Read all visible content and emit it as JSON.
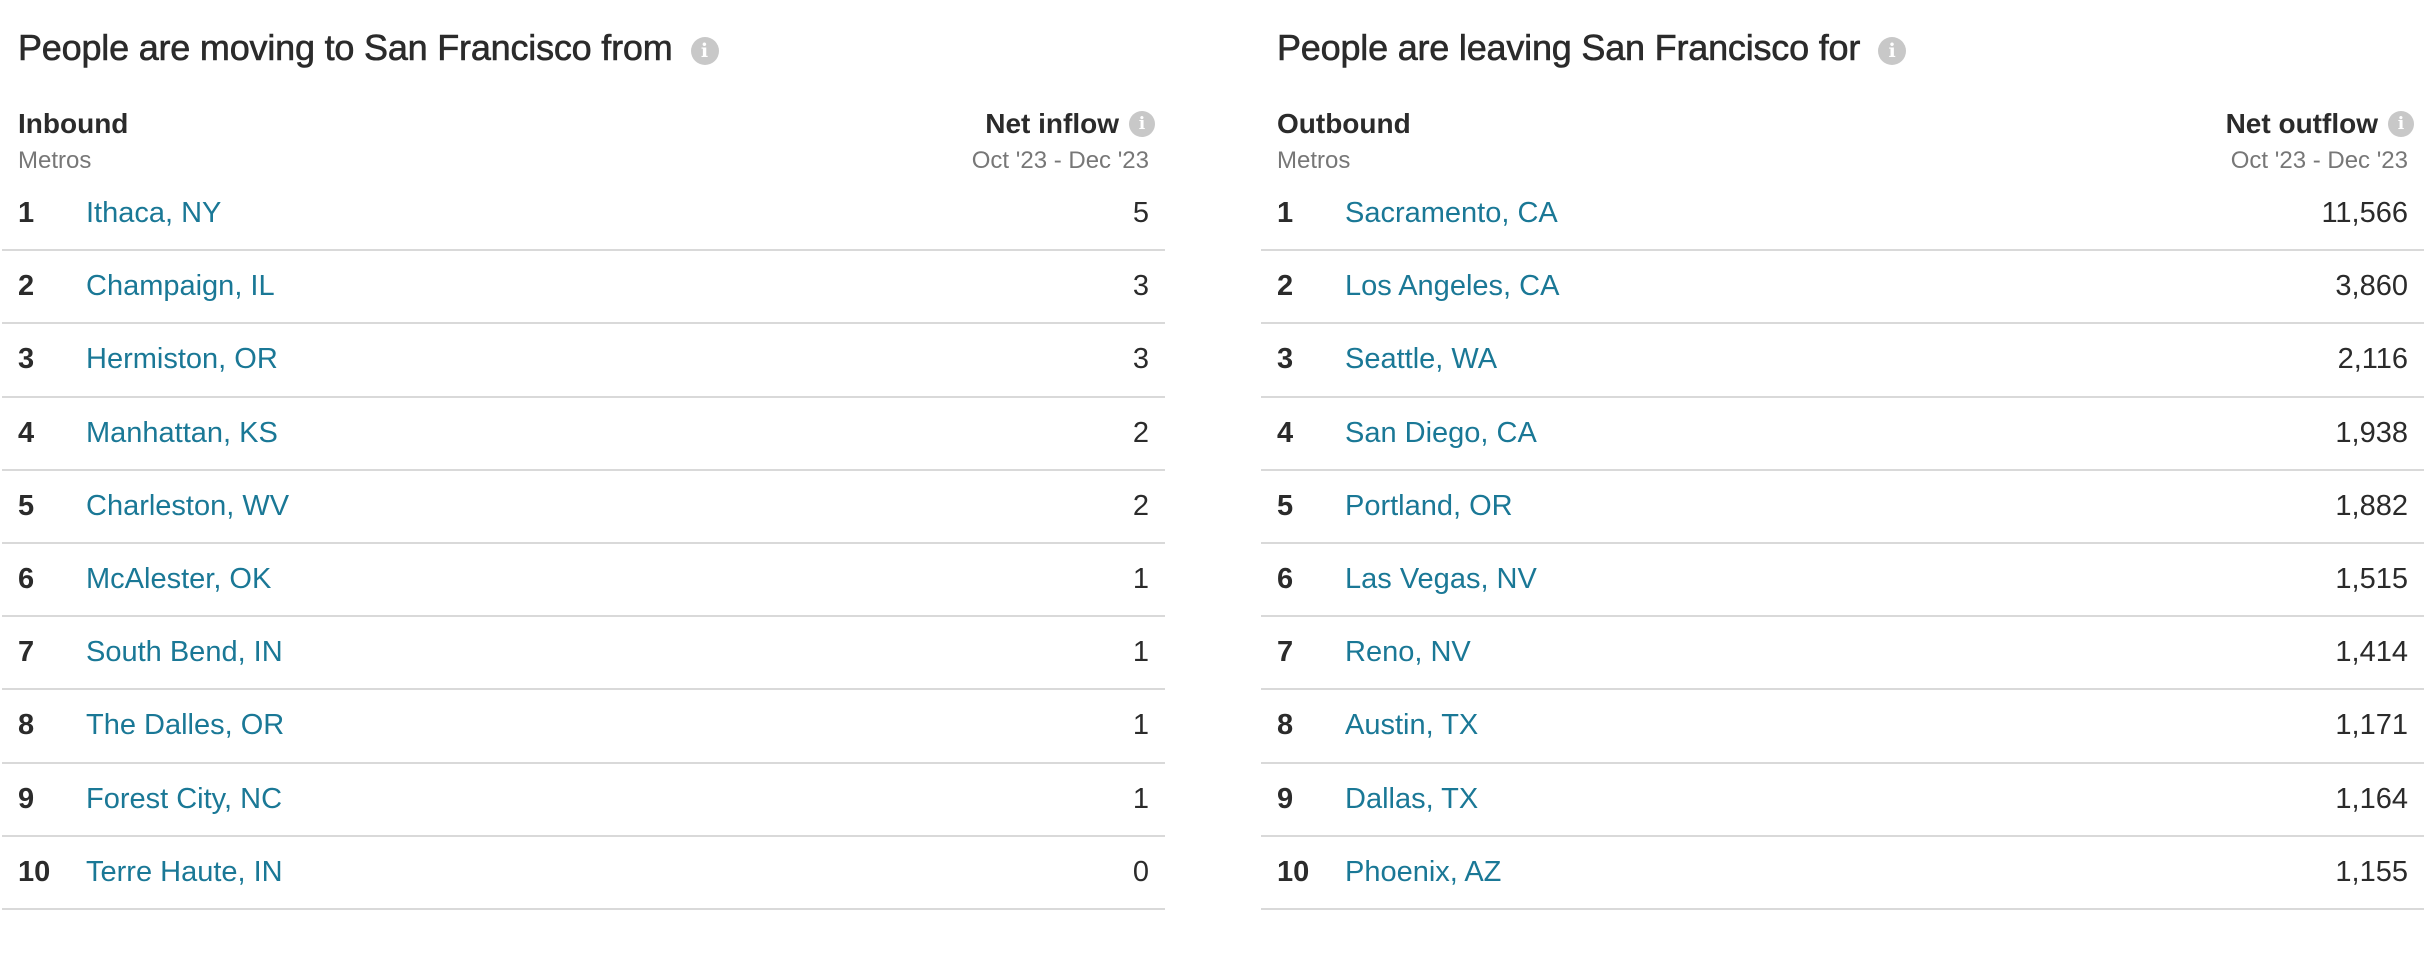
{
  "inbound": {
    "title": "People are moving to San Francisco from",
    "col_label": "Inbound",
    "col_sub": "Metros",
    "value_label": "Net inflow",
    "value_sub": "Oct '23 - Dec '23",
    "rows": [
      {
        "rank": "1",
        "place": "Ithaca, NY",
        "value": "5"
      },
      {
        "rank": "2",
        "place": "Champaign, IL",
        "value": "3"
      },
      {
        "rank": "3",
        "place": "Hermiston, OR",
        "value": "3"
      },
      {
        "rank": "4",
        "place": "Manhattan, KS",
        "value": "2"
      },
      {
        "rank": "5",
        "place": "Charleston, WV",
        "value": "2"
      },
      {
        "rank": "6",
        "place": "McAlester, OK",
        "value": "1"
      },
      {
        "rank": "7",
        "place": "South Bend, IN",
        "value": "1"
      },
      {
        "rank": "8",
        "place": "The Dalles, OR",
        "value": "1"
      },
      {
        "rank": "9",
        "place": "Forest City, NC",
        "value": "1"
      },
      {
        "rank": "10",
        "place": "Terre Haute, IN",
        "value": "0"
      }
    ]
  },
  "outbound": {
    "title": "People are leaving San Francisco for",
    "col_label": "Outbound",
    "col_sub": "Metros",
    "value_label": "Net outflow",
    "value_sub": "Oct '23 - Dec '23",
    "rows": [
      {
        "rank": "1",
        "place": "Sacramento, CA",
        "value": "11,566"
      },
      {
        "rank": "2",
        "place": "Los Angeles, CA",
        "value": "3,860"
      },
      {
        "rank": "3",
        "place": "Seattle, WA",
        "value": "2,116"
      },
      {
        "rank": "4",
        "place": "San Diego, CA",
        "value": "1,938"
      },
      {
        "rank": "5",
        "place": "Portland, OR",
        "value": "1,882"
      },
      {
        "rank": "6",
        "place": "Las Vegas, NV",
        "value": "1,515"
      },
      {
        "rank": "7",
        "place": "Reno, NV",
        "value": "1,414"
      },
      {
        "rank": "8",
        "place": "Austin, TX",
        "value": "1,171"
      },
      {
        "rank": "9",
        "place": "Dallas, TX",
        "value": "1,164"
      },
      {
        "rank": "10",
        "place": "Phoenix, AZ",
        "value": "1,155"
      }
    ]
  },
  "icons": {
    "info": "info-icon",
    "info_glyph": "i"
  },
  "colors": {
    "link": "#1a7896",
    "text": "#2b2b2b",
    "muted": "#777777",
    "divider": "#d9d9d9",
    "icon_bg": "#c8c8c8"
  }
}
